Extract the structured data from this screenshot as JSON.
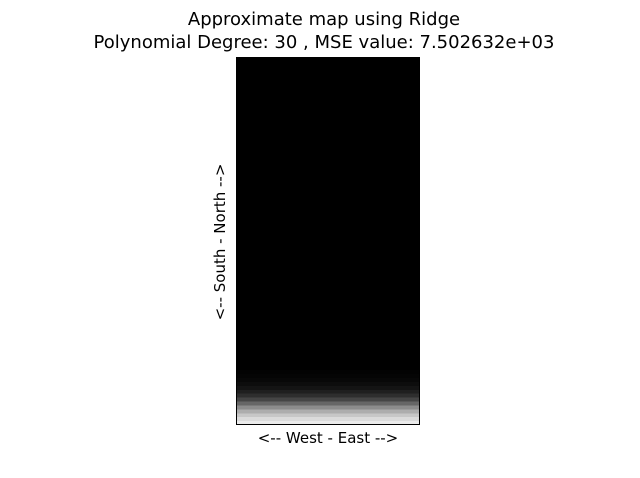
{
  "chart_data": {
    "type": "heatmap",
    "title_lines": [
      "Approximate map using Ridge",
      "Polynomial Degree: 30 , MSE value: 7.502632e+03"
    ],
    "xlabel": "<-- West - East -->",
    "ylabel": "<-- South - North -->",
    "colormap": "gray",
    "ticks_visible": false,
    "rows_top_to_bottom": [
      0,
      0,
      0,
      0,
      0,
      0,
      0,
      0,
      0,
      0,
      0,
      0,
      0,
      0,
      0,
      0,
      0,
      0,
      0,
      0,
      0,
      0,
      0,
      0,
      0,
      0,
      0,
      0,
      0,
      0,
      0,
      0,
      0,
      0,
      0,
      0,
      0,
      0,
      0,
      0,
      0,
      0,
      0,
      0,
      0,
      0,
      0,
      0,
      0,
      0,
      0,
      0,
      0,
      0,
      0,
      0,
      0,
      0,
      0,
      0,
      0,
      0,
      0,
      0,
      0,
      0,
      0,
      0,
      0,
      0,
      0,
      0,
      0,
      0,
      0,
      0,
      0,
      0,
      0,
      0,
      0.01,
      0.02,
      0.03,
      0.05,
      0.08,
      0.12,
      0.18,
      0.27,
      0.4,
      0.55,
      0.68,
      0.78,
      0.86,
      0.92
    ]
  }
}
